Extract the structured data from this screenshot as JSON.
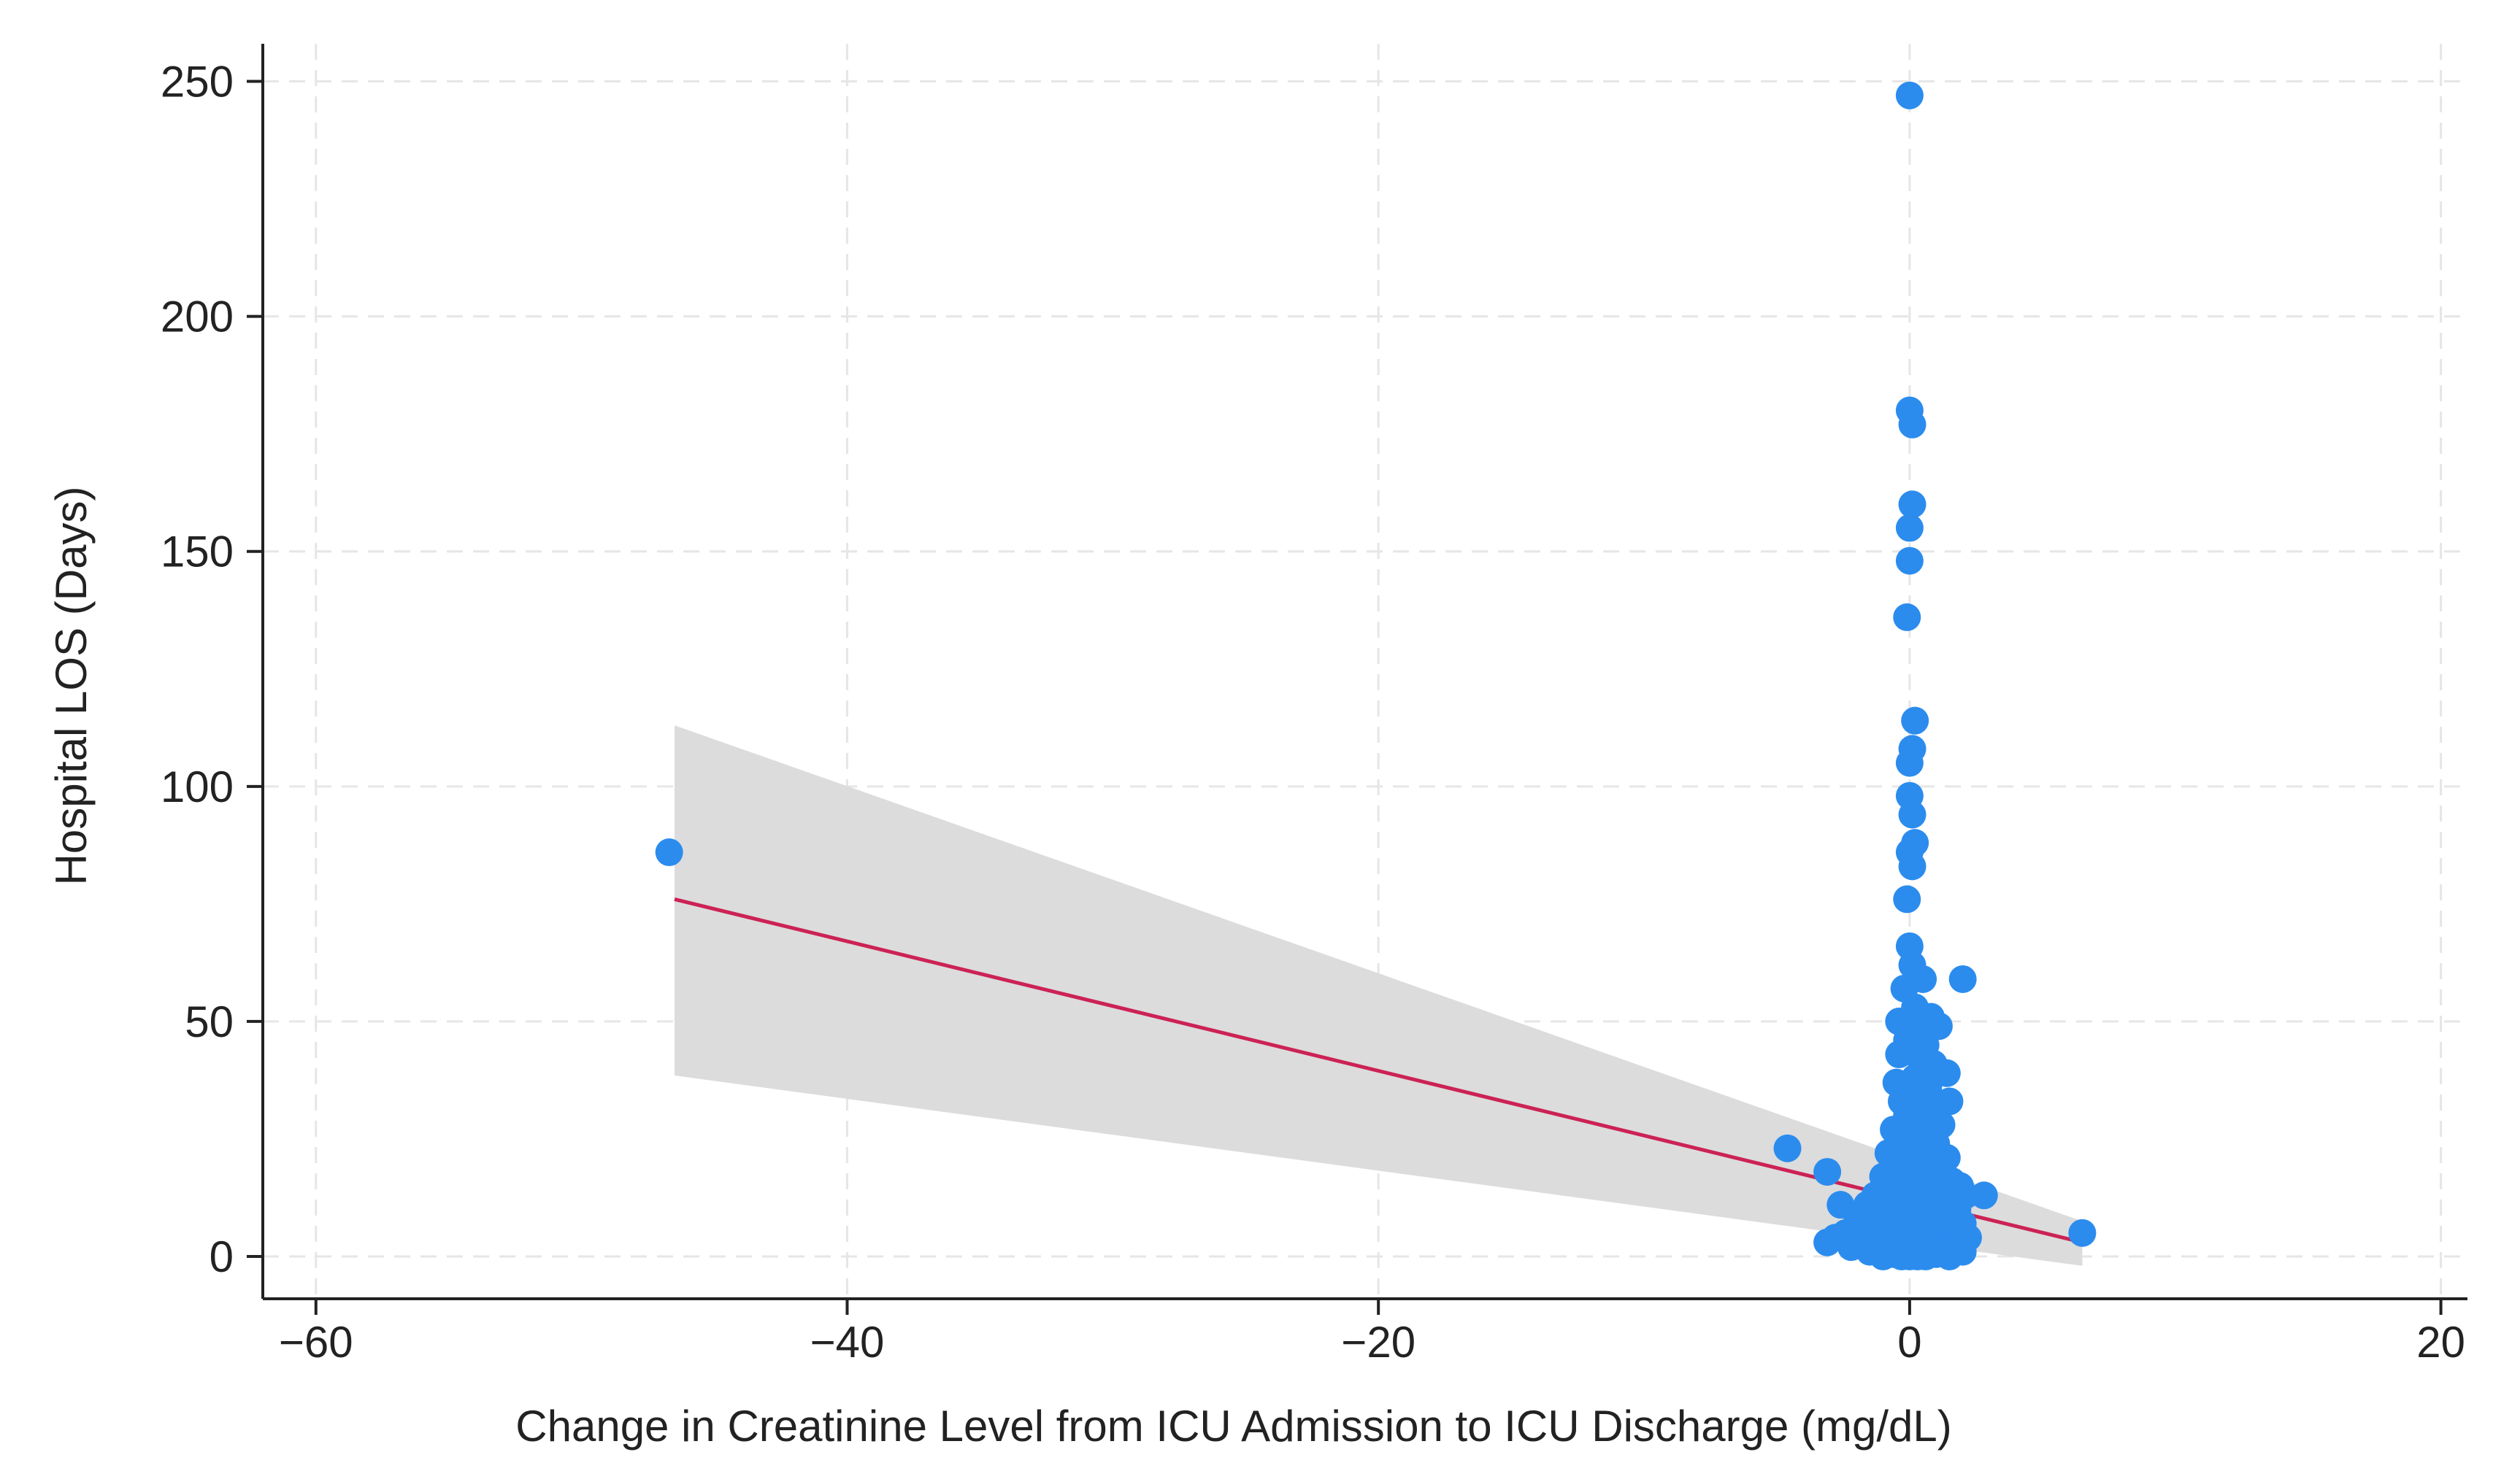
{
  "chart_data": {
    "type": "scatter",
    "title": "",
    "xlabel": "Change in Creatinine Level from ICU Admission to ICU Discharge (mg/dL)",
    "ylabel": "Hospital LOS (Days)",
    "xlim": [
      -62,
      21
    ],
    "ylim": [
      -9,
      258
    ],
    "x_ticks": [
      -60,
      -40,
      -20,
      0,
      20
    ],
    "x_tick_labels": [
      "−60",
      "−40",
      "−20",
      "0",
      "20"
    ],
    "y_ticks": [
      0,
      50,
      100,
      150,
      200,
      250
    ],
    "y_tick_labels": [
      "0",
      "50",
      "100",
      "150",
      "200",
      "250"
    ],
    "grid": true,
    "legend": "none",
    "colors": {
      "points": "#2b8cee",
      "fit_line": "#cc2255",
      "ci_band": "#dcdcdc"
    },
    "fit": {
      "x": [
        -46.5,
        6.5
      ],
      "y": [
        76,
        3
      ],
      "ci_lower": [
        38.5,
        -2
      ],
      "ci_upper": [
        113,
        7.5
      ]
    },
    "points": [
      [
        -46.7,
        86
      ],
      [
        6.5,
        5
      ],
      [
        2.0,
        59
      ],
      [
        -4.6,
        23
      ],
      [
        -3.1,
        18
      ],
      [
        -2.6,
        11
      ],
      [
        2.8,
        13
      ],
      [
        0,
        247
      ],
      [
        0,
        180
      ],
      [
        0.1,
        177
      ],
      [
        0.1,
        160
      ],
      [
        0,
        155
      ],
      [
        0,
        148
      ],
      [
        -0.1,
        136
      ],
      [
        0.2,
        114
      ],
      [
        0.1,
        108
      ],
      [
        0,
        105
      ],
      [
        0,
        98
      ],
      [
        0.1,
        94
      ],
      [
        0.2,
        88
      ],
      [
        0,
        86
      ],
      [
        0.1,
        83
      ],
      [
        -0.1,
        76
      ],
      [
        0,
        66
      ],
      [
        0.1,
        62
      ],
      [
        0.5,
        59
      ],
      [
        -0.2,
        57
      ],
      [
        0.2,
        53
      ],
      [
        0.8,
        51
      ],
      [
        -0.4,
        50
      ],
      [
        1.1,
        49
      ],
      [
        0.3,
        48
      ],
      [
        -0.1,
        46
      ],
      [
        0.6,
        45
      ],
      [
        -0.4,
        43
      ],
      [
        0.4,
        42
      ],
      [
        0.9,
        41
      ],
      [
        1.4,
        39
      ],
      [
        0.2,
        38
      ],
      [
        -0.5,
        37
      ],
      [
        0.7,
        36
      ],
      [
        0.1,
        35
      ],
      [
        1.5,
        33
      ],
      [
        -0.3,
        33
      ],
      [
        0.4,
        32
      ],
      [
        0.9,
        31
      ],
      [
        -0.1,
        30
      ],
      [
        0.3,
        29
      ],
      [
        1.2,
        28
      ],
      [
        -0.6,
        27
      ],
      [
        0.5,
        27
      ],
      [
        0.1,
        26
      ],
      [
        0.8,
        25
      ],
      [
        -0.3,
        25
      ],
      [
        1.0,
        24
      ],
      [
        0.2,
        23
      ],
      [
        -0.8,
        22
      ],
      [
        0.6,
        22
      ],
      [
        1.4,
        21
      ],
      [
        0,
        21
      ],
      [
        0.4,
        20
      ],
      [
        -0.4,
        19
      ],
      [
        1.0,
        19
      ],
      [
        0.2,
        18
      ],
      [
        -1.0,
        17
      ],
      [
        0.7,
        17
      ],
      [
        1.6,
        16
      ],
      [
        -0.2,
        16
      ],
      [
        0.5,
        15
      ],
      [
        1.9,
        15
      ],
      [
        -0.6,
        15
      ],
      [
        0.1,
        14
      ],
      [
        1.1,
        14
      ],
      [
        -1.3,
        13
      ],
      [
        0.3,
        13
      ],
      [
        2.1,
        13
      ],
      [
        -0.4,
        12
      ],
      [
        0.8,
        12
      ],
      [
        1.4,
        12
      ],
      [
        -1.6,
        11
      ],
      [
        0,
        11
      ],
      [
        0.6,
        11
      ],
      [
        1.8,
        10
      ],
      [
        -0.8,
        10
      ],
      [
        0.3,
        10
      ],
      [
        -2.0,
        9
      ],
      [
        1.1,
        9
      ],
      [
        -0.2,
        9
      ],
      [
        0.5,
        8
      ],
      [
        1.5,
        8
      ],
      [
        -1.1,
        8
      ],
      [
        0.1,
        8
      ],
      [
        -0.5,
        7
      ],
      [
        0.9,
        7
      ],
      [
        2.0,
        7
      ],
      [
        -1.7,
        6
      ],
      [
        0.4,
        6
      ],
      [
        1.2,
        6
      ],
      [
        -0.3,
        6
      ],
      [
        -2.4,
        5
      ],
      [
        0.7,
        5
      ],
      [
        1.7,
        5
      ],
      [
        -0.9,
        5
      ],
      [
        0.2,
        5
      ],
      [
        1.0,
        4
      ],
      [
        -1.4,
        4
      ],
      [
        0.5,
        4
      ],
      [
        -2.8,
        4
      ],
      [
        2.2,
        4
      ],
      [
        -0.1,
        4
      ],
      [
        0.8,
        3
      ],
      [
        -0.6,
        3
      ],
      [
        1.4,
        3
      ],
      [
        -1.9,
        3
      ],
      [
        0.3,
        3
      ],
      [
        -3.1,
        3
      ],
      [
        1.9,
        3
      ],
      [
        0.1,
        2
      ],
      [
        -0.4,
        2
      ],
      [
        1.1,
        2
      ],
      [
        -1.2,
        2
      ],
      [
        0.6,
        2
      ],
      [
        -2.2,
        2
      ],
      [
        1.6,
        2
      ],
      [
        0,
        1
      ],
      [
        -0.8,
        1
      ],
      [
        0.9,
        1
      ],
      [
        -1.5,
        1
      ],
      [
        0.4,
        1
      ],
      [
        1.3,
        1
      ],
      [
        -0.2,
        1
      ],
      [
        2.0,
        1
      ],
      [
        0.2,
        0.5
      ],
      [
        -0.6,
        0.5
      ],
      [
        1.0,
        0.5
      ],
      [
        0.6,
        0
      ],
      [
        -0.3,
        0
      ],
      [
        1.5,
        0
      ],
      [
        0,
        0
      ],
      [
        -1.0,
        0
      ],
      [
        0.3,
        0
      ]
    ]
  }
}
